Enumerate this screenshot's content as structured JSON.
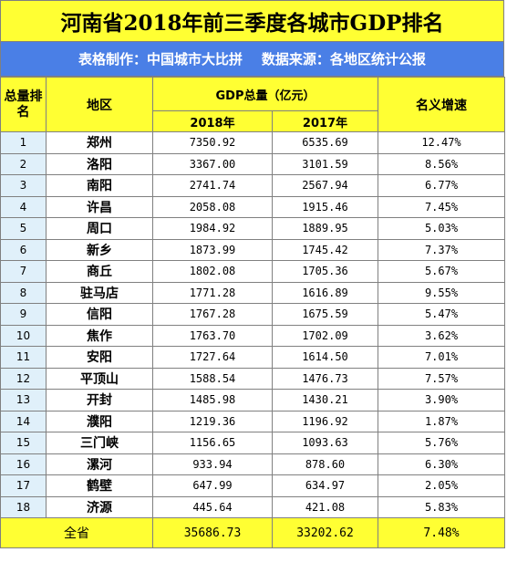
{
  "title": "河南省2018年前三季度各城市GDP排名",
  "subtitle": "表格制作：中国城市大比拼    数据来源：各地区统计公报",
  "headers": {
    "rank": "总量排名",
    "region": "地区",
    "gdp_total": "GDP总量（亿元）",
    "y2018": "2018年",
    "y2017": "2017年",
    "growth": "名义增速"
  },
  "rows": [
    {
      "rank": "1",
      "name": "郑州",
      "gdp2018": "7350.92",
      "gdp2017": "6535.69",
      "growth": "12.47%"
    },
    {
      "rank": "2",
      "name": "洛阳",
      "gdp2018": "3367.00",
      "gdp2017": "3101.59",
      "growth": "8.56%"
    },
    {
      "rank": "3",
      "name": "南阳",
      "gdp2018": "2741.74",
      "gdp2017": "2567.94",
      "growth": "6.77%"
    },
    {
      "rank": "4",
      "name": "许昌",
      "gdp2018": "2058.08",
      "gdp2017": "1915.46",
      "growth": "7.45%"
    },
    {
      "rank": "5",
      "name": "周口",
      "gdp2018": "1984.92",
      "gdp2017": "1889.95",
      "growth": "5.03%"
    },
    {
      "rank": "6",
      "name": "新乡",
      "gdp2018": "1873.99",
      "gdp2017": "1745.42",
      "growth": "7.37%"
    },
    {
      "rank": "7",
      "name": "商丘",
      "gdp2018": "1802.08",
      "gdp2017": "1705.36",
      "growth": "5.67%"
    },
    {
      "rank": "8",
      "name": "驻马店",
      "gdp2018": "1771.28",
      "gdp2017": "1616.89",
      "growth": "9.55%"
    },
    {
      "rank": "9",
      "name": "信阳",
      "gdp2018": "1767.28",
      "gdp2017": "1675.59",
      "growth": "5.47%"
    },
    {
      "rank": "10",
      "name": "焦作",
      "gdp2018": "1763.70",
      "gdp2017": "1702.09",
      "growth": "3.62%"
    },
    {
      "rank": "11",
      "name": "安阳",
      "gdp2018": "1727.64",
      "gdp2017": "1614.50",
      "growth": "7.01%"
    },
    {
      "rank": "12",
      "name": "平顶山",
      "gdp2018": "1588.54",
      "gdp2017": "1476.73",
      "growth": "7.57%"
    },
    {
      "rank": "13",
      "name": "开封",
      "gdp2018": "1485.98",
      "gdp2017": "1430.21",
      "growth": "3.90%"
    },
    {
      "rank": "14",
      "name": "濮阳",
      "gdp2018": "1219.36",
      "gdp2017": "1196.92",
      "growth": "1.87%"
    },
    {
      "rank": "15",
      "name": "三门峡",
      "gdp2018": "1156.65",
      "gdp2017": "1093.63",
      "growth": "5.76%"
    },
    {
      "rank": "16",
      "name": "漯河",
      "gdp2018": "933.94",
      "gdp2017": "878.60",
      "growth": "6.30%"
    },
    {
      "rank": "17",
      "name": "鹤壁",
      "gdp2018": "647.99",
      "gdp2017": "634.97",
      "growth": "2.05%"
    },
    {
      "rank": "18",
      "name": "济源",
      "gdp2018": "445.64",
      "gdp2017": "421.08",
      "growth": "5.83%"
    }
  ],
  "total": {
    "label": "全省",
    "gdp2018": "35686.73",
    "gdp2017": "33202.62",
    "growth": "7.48%"
  },
  "colors": {
    "header_yellow": "#ffff33",
    "subtitle_blue": "#4a7fe6",
    "rank_cell": "#e0f0fa",
    "border": "#808080"
  }
}
